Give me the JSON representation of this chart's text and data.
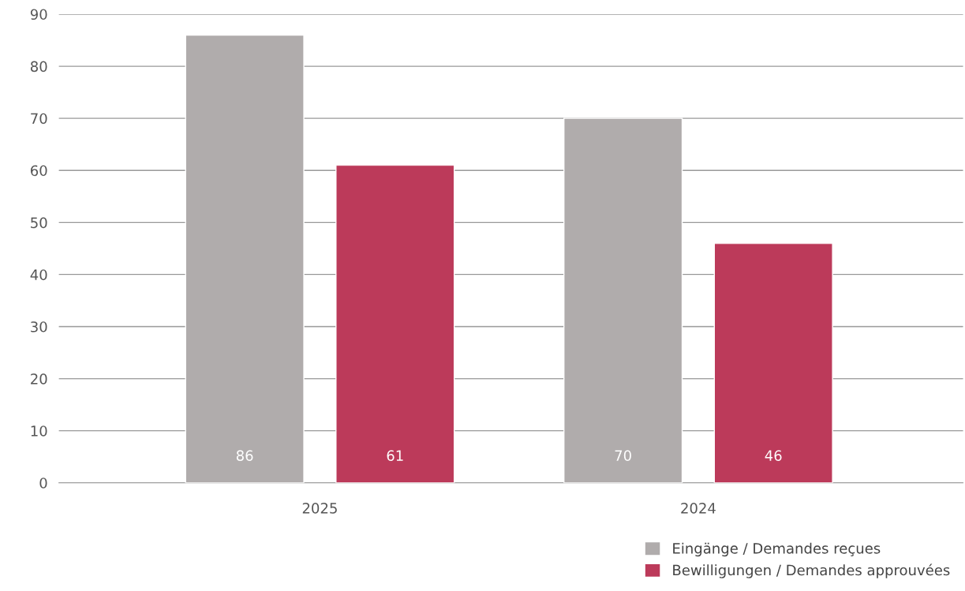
{
  "chart_data": {
    "type": "bar",
    "categories": [
      "2025",
      "2024"
    ],
    "series": [
      {
        "name": "Eingänge / Demandes reçues",
        "color": "#b0acac",
        "values": [
          86,
          70
        ]
      },
      {
        "name": "Bewilligungen / Demandes approuvées",
        "color": "#bc3a5a",
        "values": [
          61,
          46
        ]
      }
    ],
    "ylim": [
      0,
      90
    ],
    "yticks": [
      0,
      10,
      20,
      30,
      40,
      50,
      60,
      70,
      80,
      90
    ],
    "grid": "y",
    "legend": "bottom right",
    "data_labels": true
  }
}
